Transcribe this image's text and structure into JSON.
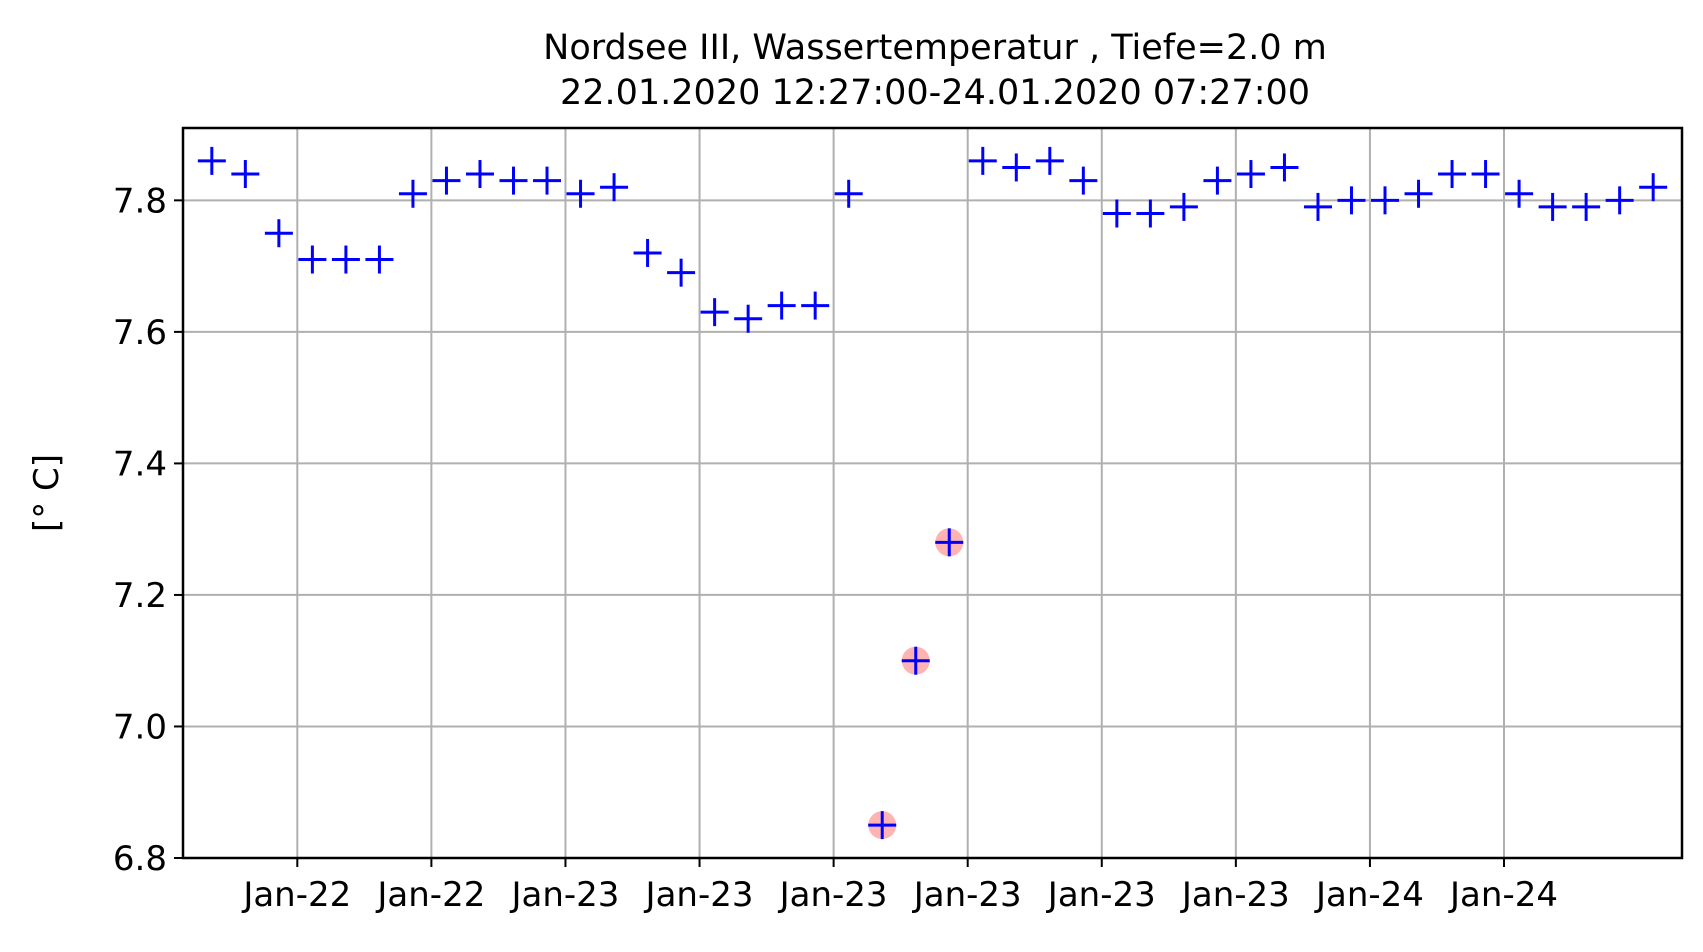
{
  "chart_data": {
    "type": "scatter",
    "title": "Nordsee III, Wassertemperatur , Tiefe=2.0 m",
    "subtitle": "22.01.2020 12:27:00-24.01.2020 07:27:00",
    "xlabel": "",
    "ylabel": "[° C]",
    "ylim": [
      6.8,
      7.91
    ],
    "yticks": [
      "6.8",
      "7.0",
      "7.2",
      "7.4",
      "7.6",
      "7.8"
    ],
    "xticks": [
      "Jan-22",
      "Jan-22",
      "Jan-23",
      "Jan-23",
      "Jan-23",
      "Jan-23",
      "Jan-23",
      "Jan-23",
      "Jan-24",
      "Jan-24"
    ],
    "xlim": [
      "2020-01-22 12:27",
      "2020-01-24 07:27"
    ],
    "grid": true,
    "marker": "+",
    "marker_color": "#0000ff",
    "flag_color": "#ffb3b3",
    "series": [
      {
        "x": [
          "2020-01-22 12:27",
          "2020-01-22 13:27",
          "2020-01-22 14:27",
          "2020-01-22 15:27",
          "2020-01-22 16:27",
          "2020-01-22 17:27",
          "2020-01-22 18:27",
          "2020-01-22 19:27",
          "2020-01-22 20:27",
          "2020-01-22 21:27",
          "2020-01-22 22:27",
          "2020-01-22 23:27",
          "2020-01-23 00:27",
          "2020-01-23 01:27",
          "2020-01-23 02:27",
          "2020-01-23 03:27",
          "2020-01-23 04:27",
          "2020-01-23 05:27",
          "2020-01-23 06:27",
          "2020-01-23 07:27",
          "2020-01-23 08:27",
          "2020-01-23 09:27",
          "2020-01-23 10:27",
          "2020-01-23 11:27",
          "2020-01-23 12:27",
          "2020-01-23 13:27",
          "2020-01-23 14:27",
          "2020-01-23 15:27",
          "2020-01-23 16:27",
          "2020-01-23 17:27",
          "2020-01-23 18:27",
          "2020-01-23 19:27",
          "2020-01-23 20:27",
          "2020-01-23 21:27",
          "2020-01-23 22:27",
          "2020-01-23 23:27",
          "2020-01-24 00:27",
          "2020-01-24 01:27",
          "2020-01-24 02:27",
          "2020-01-24 03:27",
          "2020-01-24 04:27",
          "2020-01-24 05:27",
          "2020-01-24 06:27",
          "2020-01-24 07:27"
        ],
        "values": [
          7.86,
          7.84,
          7.75,
          7.71,
          7.71,
          7.71,
          7.81,
          7.83,
          7.84,
          7.83,
          7.83,
          7.81,
          7.82,
          7.72,
          7.69,
          7.63,
          7.62,
          7.64,
          7.64,
          7.81,
          6.85,
          7.1,
          7.28,
          7.86,
          7.85,
          7.86,
          7.83,
          7.78,
          7.78,
          7.79,
          7.83,
          7.84,
          7.85,
          7.79,
          7.8,
          7.8,
          7.81,
          7.84,
          7.84,
          7.81,
          7.79,
          7.79,
          7.8,
          7.82
        ],
        "flagged": [
          false,
          false,
          false,
          false,
          false,
          false,
          false,
          false,
          false,
          false,
          false,
          false,
          false,
          false,
          false,
          false,
          false,
          false,
          false,
          false,
          true,
          true,
          true,
          false,
          false,
          false,
          false,
          false,
          false,
          false,
          false,
          false,
          false,
          false,
          false,
          false,
          false,
          false,
          false,
          false,
          false,
          false,
          false,
          false
        ]
      }
    ]
  }
}
